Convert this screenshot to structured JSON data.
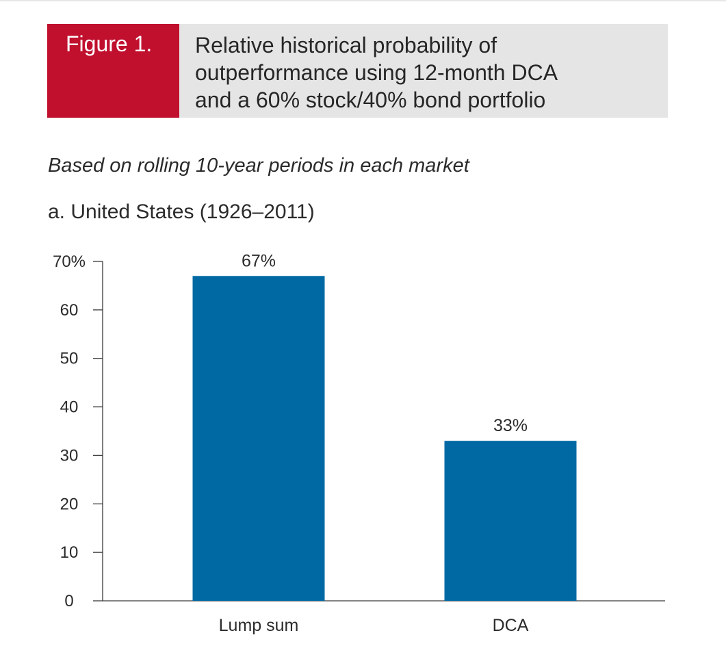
{
  "header": {
    "figure_label": "Figure 1.",
    "title_lines": [
      "Relative historical probability of",
      "outperformance using 12-month DCA",
      "and a 60% stock/40% bond portfolio"
    ]
  },
  "subtitle": "Based on rolling 10-year periods in each market",
  "panel_title": "a. United States (1926–2011)",
  "colors": {
    "bar": "#0069a3",
    "label_background": "#c0102e",
    "title_background": "#e5e5e6",
    "axis": "#3a3a3a"
  },
  "chart_data": {
    "type": "bar",
    "categories": [
      "Lump sum",
      "DCA"
    ],
    "values": [
      67,
      33
    ],
    "value_labels": [
      "67%",
      "33%"
    ],
    "ylim": [
      0,
      70
    ],
    "yticks": [
      0,
      10,
      20,
      30,
      40,
      50,
      60,
      70
    ],
    "ytick_labels": [
      "0",
      "10",
      "20",
      "30",
      "40",
      "50",
      "60",
      "70%"
    ],
    "xlabel": "",
    "ylabel": "",
    "grid": false,
    "legend": "none"
  }
}
